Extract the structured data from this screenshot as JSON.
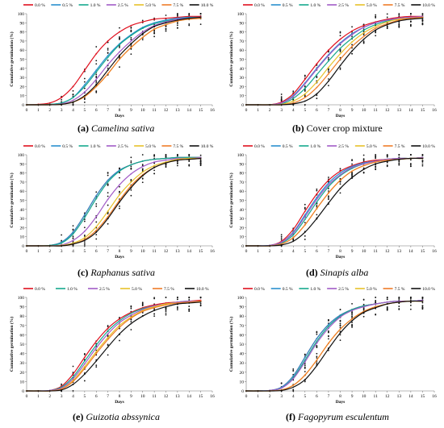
{
  "series_colors": {
    "0.0 %": "#e0101e",
    "0.5 %": "#2a8fcf",
    "1.0 %": "#16a88e",
    "2.5 %": "#a25cc7",
    "5.0 %": "#e7c12a",
    "7.5 %": "#ef7c28",
    "10.0 %": "#111111"
  },
  "chart_data": [
    {
      "type": "line",
      "caption_letter": "(a)",
      "caption_text": "Camelina sativa",
      "caption_italic": true,
      "xlabel": "Days",
      "ylabel": "Cumulative germination (%)",
      "xlim": [
        0,
        16
      ],
      "ylim": [
        0,
        100
      ],
      "x_ticks": [
        0,
        1,
        2,
        3,
        4,
        5,
        6,
        7,
        8,
        9,
        10,
        11,
        12,
        13,
        14,
        15,
        16
      ],
      "y_ticks": [
        0,
        10,
        20,
        30,
        40,
        50,
        60,
        70,
        80,
        90,
        100
      ],
      "x": [
        0,
        1,
        2,
        3,
        4,
        5,
        6,
        7,
        8,
        9,
        10,
        11,
        12,
        13,
        14,
        15
      ],
      "series": [
        {
          "name": "0.0 %",
          "values": [
            0,
            0.5,
            2,
            8,
            20,
            38,
            56,
            70,
            80,
            87,
            91,
            94,
            95,
            96,
            97,
            97
          ]
        },
        {
          "name": "0.5 %",
          "values": [
            0,
            0,
            0.5,
            2,
            8,
            22,
            38,
            54,
            67,
            77,
            85,
            90,
            93,
            95,
            96,
            96
          ]
        },
        {
          "name": "1.0 %",
          "values": [
            0,
            0,
            0.5,
            2,
            8,
            20,
            36,
            52,
            66,
            76,
            84,
            89,
            92,
            94,
            95,
            96
          ]
        },
        {
          "name": "2.5 %",
          "values": [
            0,
            0,
            0,
            1,
            5,
            14,
            28,
            44,
            58,
            70,
            80,
            87,
            91,
            94,
            95,
            96
          ]
        },
        {
          "name": "5.0 %",
          "values": [
            0,
            0,
            0,
            0.5,
            3,
            9,
            20,
            34,
            50,
            63,
            74,
            83,
            88,
            92,
            94,
            95
          ]
        },
        {
          "name": "7.5 %",
          "values": [
            0,
            0,
            0,
            0.5,
            3,
            9,
            20,
            34,
            50,
            63,
            74,
            83,
            88,
            92,
            94,
            95
          ]
        },
        {
          "name": "10.0 %",
          "values": [
            0,
            0,
            0,
            0.5,
            3,
            10,
            22,
            38,
            54,
            67,
            78,
            86,
            90,
            93,
            95,
            96
          ]
        }
      ]
    },
    {
      "type": "line",
      "caption_letter": "(b)",
      "caption_text": "Cover crop mixture",
      "caption_italic": false,
      "xlabel": "Days",
      "ylabel": "Cumulative germination (%)",
      "xlim": [
        0,
        16
      ],
      "ylim": [
        0,
        100
      ],
      "x_ticks": [
        0,
        1,
        2,
        3,
        4,
        5,
        6,
        7,
        8,
        9,
        10,
        11,
        12,
        13,
        14,
        15,
        16
      ],
      "y_ticks": [
        0,
        10,
        20,
        30,
        40,
        50,
        60,
        70,
        80,
        90,
        100
      ],
      "x": [
        0,
        1,
        2,
        3,
        4,
        5,
        6,
        7,
        8,
        9,
        10,
        11,
        12,
        13,
        14,
        15
      ],
      "series": [
        {
          "name": "0.0 %",
          "values": [
            0,
            0,
            0,
            3,
            12,
            28,
            45,
            60,
            72,
            81,
            87,
            91,
            94,
            96,
            97,
            97
          ]
        },
        {
          "name": "0.5 %",
          "values": [
            0,
            0,
            0,
            2,
            10,
            24,
            40,
            55,
            68,
            78,
            85,
            90,
            93,
            95,
            96,
            96
          ]
        },
        {
          "name": "1.0 %",
          "values": [
            0,
            0,
            0,
            1,
            7,
            18,
            33,
            48,
            62,
            73,
            82,
            88,
            92,
            94,
            95,
            96
          ]
        },
        {
          "name": "2.5 %",
          "values": [
            0,
            0,
            0,
            2,
            9,
            23,
            39,
            54,
            67,
            77,
            85,
            90,
            93,
            95,
            96,
            97
          ]
        },
        {
          "name": "5.0 %",
          "values": [
            0,
            0,
            0,
            0.5,
            4,
            12,
            25,
            41,
            56,
            69,
            79,
            86,
            91,
            94,
            95,
            96
          ]
        },
        {
          "name": "7.5 %",
          "values": [
            0,
            0,
            0,
            0,
            2,
            8,
            19,
            34,
            50,
            64,
            75,
            84,
            89,
            93,
            95,
            96
          ]
        },
        {
          "name": "10.0 %",
          "values": [
            0,
            0,
            0,
            0,
            1,
            4,
            12,
            26,
            43,
            59,
            72,
            82,
            88,
            92,
            94,
            95
          ]
        }
      ]
    },
    {
      "type": "line",
      "caption_letter": "(c)",
      "caption_text": "Raphanus sativa",
      "caption_italic": true,
      "xlabel": "Days",
      "ylabel": "Cumulative germination (%)",
      "xlim": [
        0,
        16
      ],
      "ylim": [
        0,
        100
      ],
      "x_ticks": [
        0,
        1,
        2,
        3,
        4,
        5,
        6,
        7,
        8,
        9,
        10,
        11,
        12,
        13,
        14,
        15,
        16
      ],
      "y_ticks": [
        0,
        10,
        20,
        30,
        40,
        50,
        60,
        70,
        80,
        90,
        100
      ],
      "x": [
        0,
        1,
        2,
        3,
        4,
        5,
        6,
        7,
        8,
        9,
        10,
        11,
        12,
        13,
        14,
        15
      ],
      "series": [
        {
          "name": "0.0 %",
          "values": [
            0,
            0,
            0.5,
            4,
            15,
            34,
            55,
            72,
            83,
            89,
            93,
            95,
            96,
            97,
            97,
            97
          ]
        },
        {
          "name": "0.5 %",
          "values": [
            0,
            0,
            0.5,
            4,
            15,
            34,
            55,
            72,
            83,
            89,
            93,
            95,
            96,
            97,
            97,
            97
          ]
        },
        {
          "name": "1.0 %",
          "values": [
            0,
            0,
            0.5,
            3,
            13,
            31,
            52,
            70,
            82,
            89,
            93,
            95,
            96,
            97,
            97,
            97
          ]
        },
        {
          "name": "2.5 %",
          "values": [
            0,
            0,
            0,
            1,
            6,
            16,
            32,
            51,
            67,
            79,
            87,
            92,
            94,
            96,
            96,
            97
          ]
        },
        {
          "name": "5.0 %",
          "values": [
            0,
            0,
            0,
            0.5,
            3,
            9,
            21,
            38,
            56,
            70,
            81,
            88,
            92,
            95,
            96,
            96
          ]
        },
        {
          "name": "7.5 %",
          "values": [
            0,
            0,
            0,
            0,
            2,
            7,
            17,
            32,
            50,
            66,
            78,
            86,
            91,
            94,
            95,
            96
          ]
        },
        {
          "name": "10.0 %",
          "values": [
            0,
            0,
            0,
            0,
            2,
            6,
            15,
            30,
            48,
            64,
            77,
            86,
            91,
            94,
            95,
            96
          ]
        }
      ]
    },
    {
      "type": "line",
      "caption_letter": "(d)",
      "caption_text": "Sinapis alba",
      "caption_italic": true,
      "xlabel": "Days",
      "ylabel": "Cumulative germination (%)",
      "xlim": [
        0,
        16
      ],
      "ylim": [
        0,
        100
      ],
      "x_ticks": [
        0,
        1,
        2,
        3,
        4,
        5,
        6,
        7,
        8,
        9,
        10,
        11,
        12,
        13,
        14,
        15,
        16
      ],
      "y_ticks": [
        0,
        10,
        20,
        30,
        40,
        50,
        60,
        70,
        80,
        90,
        100
      ],
      "x": [
        0,
        1,
        2,
        3,
        4,
        5,
        6,
        7,
        8,
        9,
        10,
        11,
        12,
        13,
        14,
        15
      ],
      "series": [
        {
          "name": "0.0 %",
          "values": [
            0,
            0,
            0.5,
            5,
            18,
            38,
            57,
            72,
            82,
            88,
            92,
            94,
            95,
            96,
            96,
            97
          ]
        },
        {
          "name": "0.5 %",
          "values": [
            0,
            0,
            0.5,
            4,
            15,
            34,
            53,
            69,
            80,
            87,
            91,
            93,
            95,
            96,
            96,
            97
          ]
        },
        {
          "name": "1.0 %",
          "values": [
            0,
            0,
            0.5,
            3,
            12,
            29,
            48,
            65,
            77,
            85,
            90,
            93,
            95,
            96,
            96,
            97
          ]
        },
        {
          "name": "2.5 %",
          "values": [
            0,
            0,
            0.5,
            4,
            14,
            32,
            51,
            67,
            78,
            86,
            90,
            93,
            95,
            96,
            96,
            97
          ]
        },
        {
          "name": "5.0 %",
          "values": [
            0,
            0,
            0,
            2,
            9,
            23,
            41,
            58,
            72,
            82,
            88,
            92,
            94,
            95,
            96,
            96
          ]
        },
        {
          "name": "7.5 %",
          "values": [
            0,
            0,
            0,
            2,
            9,
            23,
            41,
            58,
            72,
            82,
            88,
            92,
            94,
            95,
            96,
            96
          ]
        },
        {
          "name": "10.0 %",
          "values": [
            0,
            0,
            0,
            1,
            5,
            15,
            30,
            47,
            63,
            75,
            84,
            90,
            93,
            95,
            96,
            96
          ]
        }
      ]
    },
    {
      "type": "line",
      "caption_letter": "(e)",
      "caption_text": "Guizotia abssynica",
      "caption_italic": true,
      "xlabel": "Days",
      "ylabel": "Cumulative germination (%)",
      "xlim": [
        0,
        16
      ],
      "ylim": [
        0,
        100
      ],
      "x_ticks": [
        0,
        1,
        2,
        3,
        4,
        5,
        6,
        7,
        8,
        9,
        10,
        11,
        12,
        13,
        14,
        15,
        16
      ],
      "y_ticks": [
        0,
        10,
        20,
        30,
        40,
        50,
        60,
        70,
        80,
        90,
        100
      ],
      "x": [
        0,
        1,
        2,
        3,
        4,
        5,
        6,
        7,
        8,
        9,
        10,
        11,
        12,
        13,
        14,
        15
      ],
      "series": [
        {
          "name": "0.0 %",
          "values": [
            0,
            0,
            0.5,
            5,
            18,
            36,
            53,
            67,
            77,
            84,
            89,
            92,
            94,
            95,
            96,
            97
          ]
        },
        {
          "name": "1.0 %",
          "values": [
            0,
            0,
            0.5,
            4,
            15,
            32,
            49,
            64,
            75,
            83,
            88,
            91,
            93,
            95,
            96,
            96
          ]
        },
        {
          "name": "2.5 %",
          "values": [
            0,
            0,
            0.5,
            3,
            13,
            29,
            46,
            61,
            73,
            81,
            87,
            91,
            93,
            95,
            96,
            96
          ]
        },
        {
          "name": "5.0 %",
          "values": [
            0,
            0,
            0,
            2,
            11,
            26,
            42,
            57,
            70,
            79,
            86,
            90,
            93,
            94,
            95,
            96
          ]
        },
        {
          "name": "7.5 %",
          "values": [
            0,
            0,
            0,
            2,
            10,
            24,
            40,
            55,
            68,
            78,
            85,
            89,
            92,
            94,
            95,
            96
          ]
        },
        {
          "name": "10.0 %",
          "values": [
            0,
            0,
            0,
            1,
            7,
            18,
            32,
            47,
            61,
            72,
            80,
            86,
            90,
            93,
            94,
            95
          ]
        }
      ]
    },
    {
      "type": "line",
      "caption_letter": "(f)",
      "caption_text": "Fagopyrum esculentum",
      "caption_italic": true,
      "xlabel": "Days",
      "ylabel": "Cumulative germination (%)",
      "xlim": [
        0,
        16
      ],
      "ylim": [
        0,
        100
      ],
      "x_ticks": [
        0,
        1,
        2,
        3,
        4,
        5,
        6,
        7,
        8,
        9,
        10,
        11,
        12,
        13,
        14,
        15,
        16
      ],
      "y_ticks": [
        0,
        10,
        20,
        30,
        40,
        50,
        60,
        70,
        80,
        90,
        100
      ],
      "x": [
        0,
        1,
        2,
        3,
        4,
        5,
        6,
        7,
        8,
        9,
        10,
        11,
        12,
        13,
        14,
        15
      ],
      "series": [
        {
          "name": "0.0 %",
          "values": [
            0,
            0,
            0.5,
            4,
            16,
            36,
            56,
            71,
            81,
            87,
            91,
            93,
            95,
            96,
            96,
            97
          ]
        },
        {
          "name": "0.5 %",
          "values": [
            0,
            0,
            0.5,
            4,
            16,
            36,
            56,
            71,
            81,
            87,
            91,
            93,
            95,
            96,
            96,
            97
          ]
        },
        {
          "name": "1.0 %",
          "values": [
            0,
            0,
            0.5,
            3,
            14,
            33,
            53,
            69,
            80,
            87,
            91,
            93,
            95,
            96,
            96,
            97
          ]
        },
        {
          "name": "2.5 %",
          "values": [
            0,
            0,
            0.5,
            3,
            13,
            31,
            51,
            67,
            79,
            86,
            90,
            93,
            95,
            96,
            96,
            97
          ]
        },
        {
          "name": "5.0 %",
          "values": [
            0,
            0,
            0,
            1,
            6,
            17,
            33,
            51,
            66,
            77,
            85,
            90,
            93,
            95,
            96,
            96
          ]
        },
        {
          "name": "7.5 %",
          "values": [
            0,
            0,
            0,
            1,
            6,
            17,
            33,
            51,
            66,
            77,
            85,
            90,
            93,
            95,
            96,
            96
          ]
        },
        {
          "name": "10.0 %",
          "values": [
            0,
            0,
            0,
            0.5,
            4,
            12,
            27,
            45,
            62,
            75,
            84,
            89,
            93,
            95,
            96,
            96
          ]
        }
      ]
    }
  ]
}
